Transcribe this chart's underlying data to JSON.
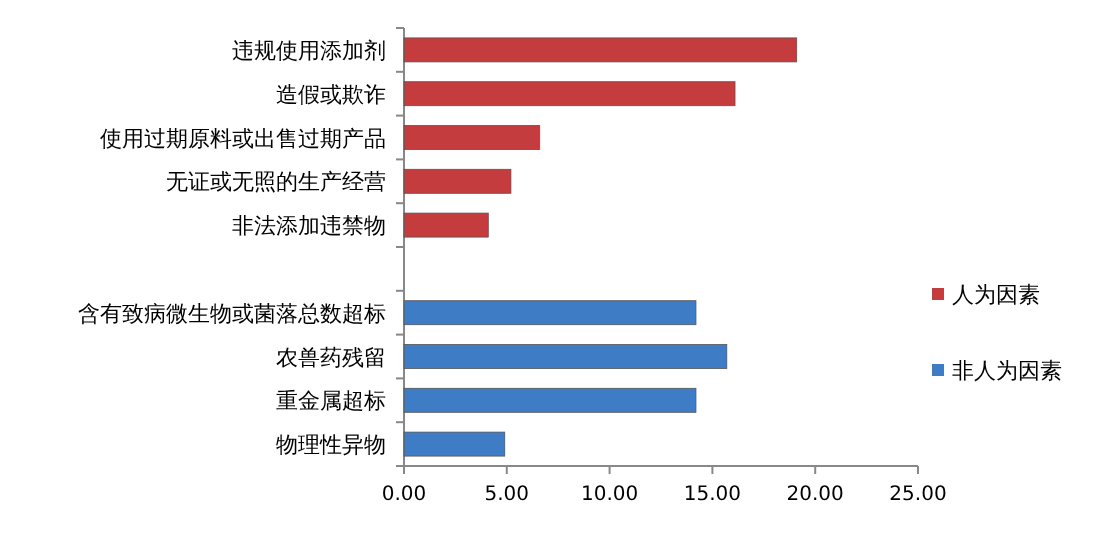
{
  "chart_data": {
    "type": "bar",
    "orientation": "horizontal",
    "categories": [
      "违规使用添加剂",
      "造假或欺诈",
      "使用过期原料或出售过期产品",
      "无证或无照的生产经营",
      "非法添加违禁物",
      null,
      "含有致病微生物或菌落总数超标",
      "农兽药残留",
      "重金属超标",
      "物理性异物"
    ],
    "series": [
      {
        "name": "人为因素",
        "color": "#c43c3e",
        "values": [
          19.1,
          16.1,
          6.6,
          5.2,
          4.1,
          null,
          null,
          null,
          null,
          null
        ]
      },
      {
        "name": "非人为因素",
        "color": "#3f7cc6",
        "values": [
          null,
          null,
          null,
          null,
          null,
          null,
          14.2,
          15.7,
          14.2,
          4.9
        ]
      }
    ],
    "xlim": [
      0,
      25
    ],
    "xticks": [
      {
        "value": 0,
        "label": "0.00"
      },
      {
        "value": 5,
        "label": "5.00"
      },
      {
        "value": 10,
        "label": "10.00"
      },
      {
        "value": 15,
        "label": "15.00"
      },
      {
        "value": 20,
        "label": "20.00"
      },
      {
        "value": 25,
        "label": "25.00"
      }
    ],
    "legend": "right",
    "grid": false
  }
}
